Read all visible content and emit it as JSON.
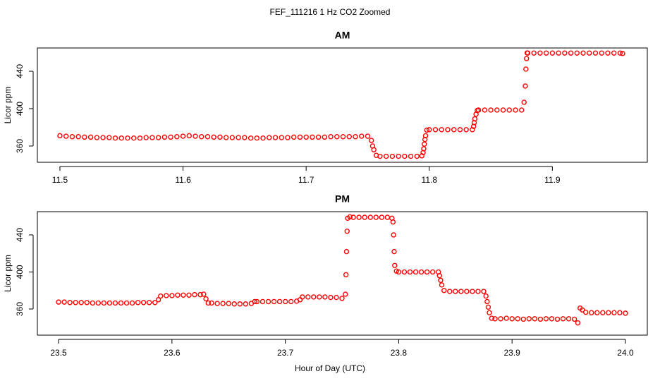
{
  "title": "FEF_111216  1 Hz CO2 Zoomed",
  "xlabel": "Hour of Day (UTC)",
  "chart_data": [
    {
      "type": "scatter",
      "title": "AM",
      "ylabel": "Licor ppm",
      "color": "#ff0000",
      "xlim": [
        11.4817,
        11.9771
      ],
      "ylim": [
        342.6,
        464.9
      ],
      "xticks": [
        11.5,
        11.6,
        11.7,
        11.8,
        11.9
      ],
      "yticks": [
        360,
        400,
        440
      ],
      "x": [
        11.5,
        11.505,
        11.51,
        11.515,
        11.52,
        11.525,
        11.53,
        11.535,
        11.54,
        11.545,
        11.55,
        11.555,
        11.56,
        11.565,
        11.57,
        11.575,
        11.58,
        11.585,
        11.59,
        11.595,
        11.6,
        11.605,
        11.61,
        11.615,
        11.62,
        11.625,
        11.63,
        11.635,
        11.64,
        11.645,
        11.65,
        11.655,
        11.66,
        11.665,
        11.67,
        11.675,
        11.68,
        11.685,
        11.69,
        11.695,
        11.7,
        11.705,
        11.71,
        11.715,
        11.72,
        11.725,
        11.73,
        11.735,
        11.74,
        11.745,
        11.75,
        11.753,
        11.754,
        11.755,
        11.757,
        11.76,
        11.765,
        11.77,
        11.775,
        11.78,
        11.785,
        11.79,
        11.794,
        11.795,
        11.7955,
        11.796,
        11.7965,
        11.797,
        11.798,
        11.8,
        11.805,
        11.81,
        11.815,
        11.82,
        11.825,
        11.83,
        11.835,
        11.836,
        11.8365,
        11.837,
        11.838,
        11.839,
        11.84,
        11.845,
        11.85,
        11.855,
        11.86,
        11.865,
        11.87,
        11.875,
        11.877,
        11.878,
        11.8785,
        11.879,
        11.8795,
        11.88,
        11.885,
        11.89,
        11.895,
        11.9,
        11.905,
        11.91,
        11.915,
        11.92,
        11.925,
        11.93,
        11.935,
        11.94,
        11.945,
        11.95,
        11.955,
        11.957
      ],
      "values": [
        371,
        370.5,
        370,
        370,
        369.5,
        369.5,
        369,
        369,
        369,
        368.5,
        368.5,
        368.5,
        368.5,
        368.5,
        369,
        369,
        369,
        369.5,
        369.5,
        370,
        370.5,
        371,
        370.5,
        370,
        370,
        369.5,
        369.5,
        369,
        369,
        369,
        369,
        368.5,
        368.5,
        368.5,
        369,
        369,
        369,
        369,
        369.5,
        369.5,
        369.5,
        369.5,
        369.5,
        369.5,
        370,
        370,
        370,
        370,
        370,
        370.5,
        370.5,
        366,
        360,
        356,
        350,
        349,
        349,
        349,
        349,
        349,
        349,
        349,
        349.5,
        353,
        357,
        362,
        367,
        371,
        377,
        377.5,
        377.5,
        377.5,
        377.5,
        377.5,
        377.5,
        377.5,
        377.5,
        381,
        385,
        389,
        394,
        398,
        398.5,
        398.5,
        398.5,
        398.5,
        398.5,
        398.5,
        398.5,
        398.5,
        406.8,
        424.2,
        442.3,
        453.6,
        459.6,
        459.5,
        459.5,
        459.5,
        459.5,
        459.5,
        459.5,
        459.5,
        459.5,
        459.5,
        459.5,
        459.5,
        459.5,
        459.5,
        459.5,
        459.5,
        459.5,
        459
      ]
    },
    {
      "type": "scatter",
      "title": "PM",
      "ylabel": "Licor ppm",
      "color": "#ff0000",
      "xlim": [
        23.4813,
        24.0193
      ],
      "ylim": [
        331.8,
        465.1
      ],
      "xticks": [
        23.5,
        23.6,
        23.7,
        23.8,
        23.9,
        {
          "value": 24,
          "label": "24.0"
        }
      ],
      "yticks": [
        360,
        400,
        440
      ],
      "x": [
        23.5,
        23.505,
        23.51,
        23.515,
        23.52,
        23.525,
        23.53,
        23.535,
        23.54,
        23.545,
        23.55,
        23.555,
        23.56,
        23.565,
        23.57,
        23.575,
        23.58,
        23.585,
        23.588,
        23.59,
        23.595,
        23.6,
        23.605,
        23.61,
        23.615,
        23.62,
        23.625,
        23.628,
        23.63,
        23.632,
        23.635,
        23.64,
        23.645,
        23.65,
        23.655,
        23.66,
        23.665,
        23.67,
        23.673,
        23.675,
        23.68,
        23.685,
        23.69,
        23.695,
        23.7,
        23.705,
        23.71,
        23.713,
        23.715,
        23.72,
        23.725,
        23.73,
        23.735,
        23.74,
        23.745,
        23.75,
        23.753,
        23.7535,
        23.754,
        23.7545,
        23.755,
        23.757,
        23.76,
        23.765,
        23.77,
        23.775,
        23.78,
        23.785,
        23.79,
        23.794,
        23.795,
        23.7955,
        23.796,
        23.7965,
        23.798,
        23.8,
        23.805,
        23.81,
        23.815,
        23.82,
        23.825,
        23.83,
        23.835,
        23.836,
        23.837,
        23.838,
        23.84,
        23.845,
        23.85,
        23.855,
        23.86,
        23.865,
        23.87,
        23.875,
        23.877,
        23.878,
        23.879,
        23.88,
        23.882,
        23.885,
        23.89,
        23.895,
        23.9,
        23.905,
        23.91,
        23.915,
        23.92,
        23.925,
        23.93,
        23.935,
        23.94,
        23.945,
        23.95,
        23.955,
        23.958,
        23.96,
        23.962,
        23.965,
        23.97,
        23.975,
        23.98,
        23.985,
        23.99,
        23.995,
        24.0
      ],
      "values": [
        367.5,
        367.5,
        367,
        367,
        367,
        367,
        366.5,
        366.5,
        366.5,
        366.5,
        366.5,
        366.5,
        366.5,
        366.5,
        367,
        367,
        367,
        367,
        370,
        374,
        374.5,
        374.5,
        375,
        375,
        375,
        375.5,
        375.5,
        376,
        371,
        366.5,
        366.5,
        366,
        366,
        366,
        365.5,
        365.5,
        365.5,
        366,
        368,
        368,
        368,
        368,
        368,
        368,
        368,
        368,
        368.5,
        370,
        373,
        373,
        373,
        373,
        373,
        372.5,
        372.5,
        371.5,
        376,
        397,
        422,
        444,
        458,
        459.5,
        459,
        459,
        459,
        459,
        459,
        459,
        459,
        458,
        454,
        440,
        422,
        407,
        401,
        400,
        400,
        400,
        400,
        400,
        400,
        400,
        400,
        396,
        391,
        386,
        380,
        379,
        379,
        379,
        379,
        379,
        379,
        379,
        374,
        368,
        362,
        356,
        350,
        349.5,
        349.5,
        350,
        349.5,
        349.5,
        349,
        349.5,
        349.5,
        349,
        349.5,
        349.5,
        349,
        349.5,
        349.5,
        349,
        345,
        361,
        359,
        356.5,
        356,
        356,
        356,
        356,
        356,
        356,
        355.5
      ]
    }
  ]
}
